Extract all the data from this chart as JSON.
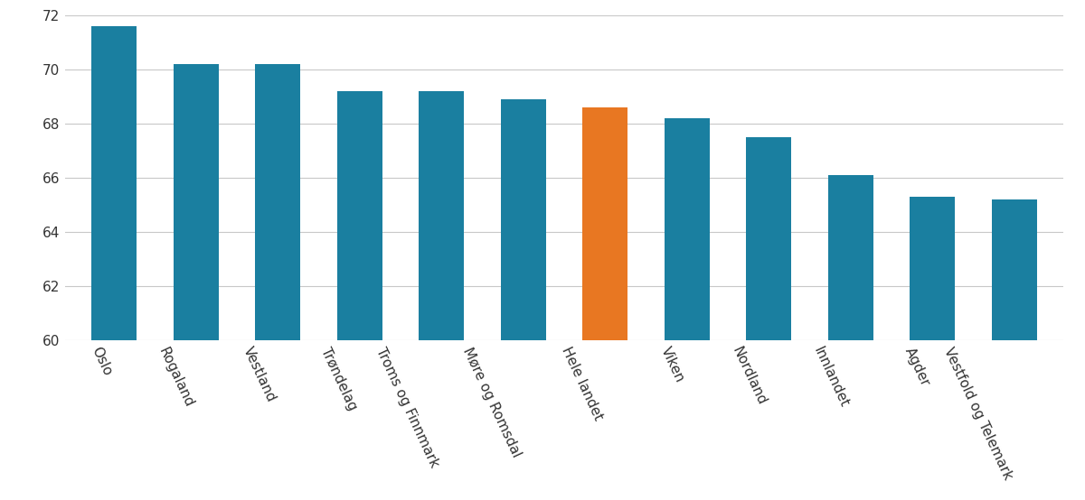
{
  "categories": [
    "Oslo",
    "Rogaland",
    "Vestland",
    "Trøndelag",
    "Troms og Finnmark",
    "Møre og Romsdal",
    "Hele landet",
    "Viken",
    "Nordland",
    "Innlandet",
    "Agder",
    "Vestfold og Telemark"
  ],
  "values": [
    71.6,
    70.2,
    70.2,
    69.2,
    69.2,
    68.9,
    68.6,
    68.2,
    67.5,
    66.1,
    65.3,
    65.2
  ],
  "bar_colors": [
    "#1a7fa0",
    "#1a7fa0",
    "#1a7fa0",
    "#1a7fa0",
    "#1a7fa0",
    "#1a7fa0",
    "#e87722",
    "#1a7fa0",
    "#1a7fa0",
    "#1a7fa0",
    "#1a7fa0",
    "#1a7fa0"
  ],
  "ylim": [
    60,
    72
  ],
  "yticks": [
    60,
    62,
    64,
    66,
    68,
    70,
    72
  ],
  "background_color": "#ffffff",
  "grid_color": "#c8c8c8",
  "label_rotation": -65,
  "bar_width": 0.55,
  "tick_fontsize": 11,
  "label_fontsize": 11
}
